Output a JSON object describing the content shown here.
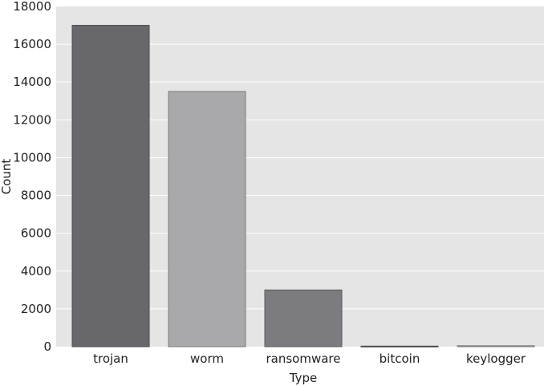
{
  "chart_data": {
    "type": "bar",
    "categories": [
      "trojan",
      "worm",
      "ransomware",
      "bitcoin",
      "keylogger"
    ],
    "values": [
      17000,
      13500,
      3000,
      30,
      50
    ],
    "title": "",
    "xlabel": "Type",
    "ylabel": "Count",
    "ylim": [
      0,
      18000
    ],
    "yticks": [
      0,
      2000,
      4000,
      6000,
      8000,
      10000,
      12000,
      14000,
      16000,
      18000
    ],
    "ytick_labels": [
      "0",
      "2000",
      "4000",
      "6000",
      "8000",
      "10000",
      "12000",
      "14000",
      "16000",
      "18000"
    ],
    "grid": true,
    "legend": "none",
    "colors": {
      "background": "#e5e5e5",
      "grid": "#ffffff",
      "bars": [
        "#68686c",
        "#a9a9ac",
        "#7c7c80",
        "#7c7c80",
        "#a9a9ac"
      ],
      "bar_edges": [
        "#4a4a4e",
        "#7a7a7e",
        "#5a5a5e",
        "#4a4a4e",
        "#7a7a7e"
      ]
    }
  }
}
